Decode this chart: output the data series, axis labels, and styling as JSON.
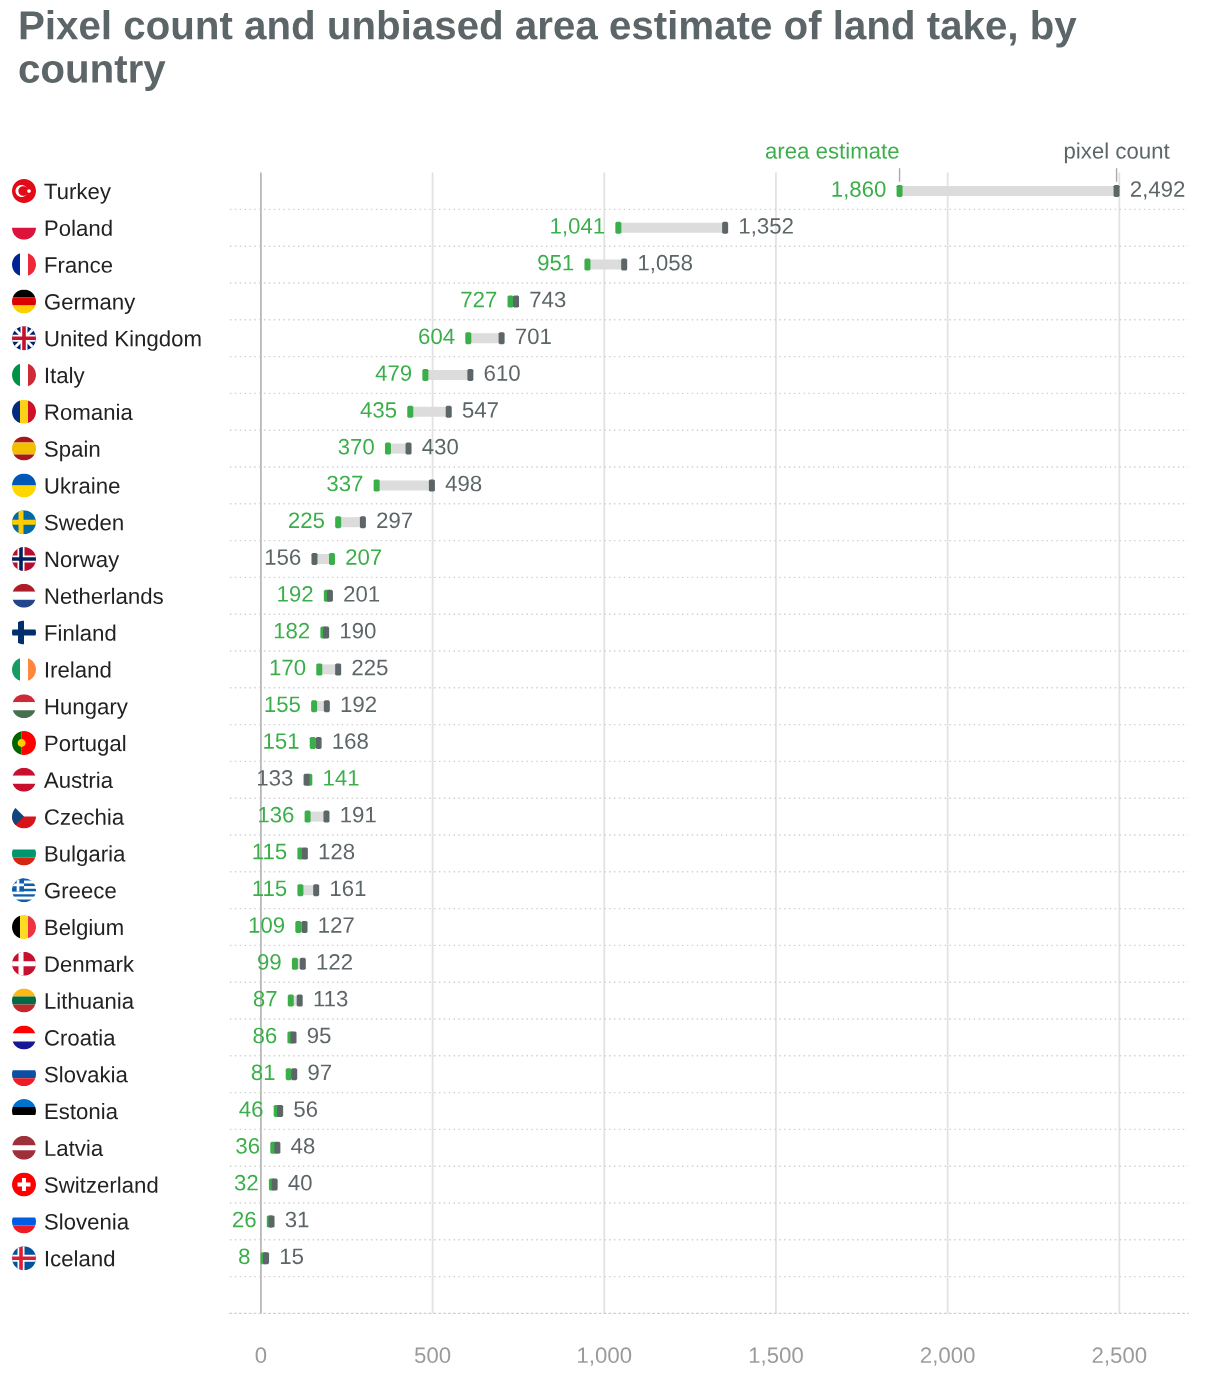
{
  "chart_data": {
    "type": "scatter",
    "title": "Pixel count and unbiased area estimate of land take, by country",
    "orientation": "horizontal",
    "categories": [
      "Turkey",
      "Poland",
      "France",
      "Germany",
      "United Kingdom",
      "Italy",
      "Romania",
      "Spain",
      "Ukraine",
      "Sweden",
      "Norway",
      "Netherlands",
      "Finland",
      "Ireland",
      "Hungary",
      "Portugal",
      "Austria",
      "Czechia",
      "Bulgaria",
      "Greece",
      "Belgium",
      "Denmark",
      "Lithuania",
      "Croatia",
      "Slovakia",
      "Estonia",
      "Latvia",
      "Switzerland",
      "Slovenia",
      "Iceland"
    ],
    "series": [
      {
        "name": "area estimate",
        "color": "#3aae49",
        "values": [
          1860,
          1041,
          951,
          727,
          604,
          479,
          435,
          370,
          337,
          225,
          207,
          192,
          182,
          170,
          155,
          151,
          141,
          136,
          115,
          115,
          109,
          99,
          87,
          86,
          81,
          46,
          36,
          32,
          26,
          8
        ],
        "value_labels": [
          "1,860",
          "1,041",
          "951",
          "727",
          "604",
          "479",
          "435",
          "370",
          "337",
          "225",
          "207",
          "192",
          "182",
          "170",
          "155",
          "151",
          "141",
          "136",
          "115",
          "115",
          "109",
          "99",
          "87",
          "86",
          "81",
          "46",
          "36",
          "32",
          "26",
          "8"
        ]
      },
      {
        "name": "pixel count",
        "color": "#5c6567",
        "values": [
          2492,
          1352,
          1058,
          743,
          701,
          610,
          547,
          430,
          498,
          297,
          156,
          201,
          190,
          225,
          192,
          168,
          133,
          191,
          128,
          161,
          127,
          122,
          113,
          95,
          97,
          56,
          48,
          40,
          31,
          15
        ],
        "value_labels": [
          "2,492",
          "1,352",
          "1,058",
          "743",
          "701",
          "610",
          "547",
          "430",
          "498",
          "297",
          "156",
          "201",
          "190",
          "225",
          "192",
          "168",
          "133",
          "191",
          "128",
          "161",
          "127",
          "122",
          "113",
          "95",
          "97",
          "56",
          "48",
          "40",
          "31",
          "15"
        ]
      }
    ],
    "xlim": [
      -90,
      2700
    ],
    "xticks": [
      0,
      500,
      {
        "value": 1000,
        "label": "1,000"
      },
      {
        "value": 1500,
        "label": "1,500"
      },
      {
        "value": 2000,
        "label": "2,000"
      },
      {
        "value": 2500,
        "label": "2,500"
      }
    ],
    "grid": true
  }
}
